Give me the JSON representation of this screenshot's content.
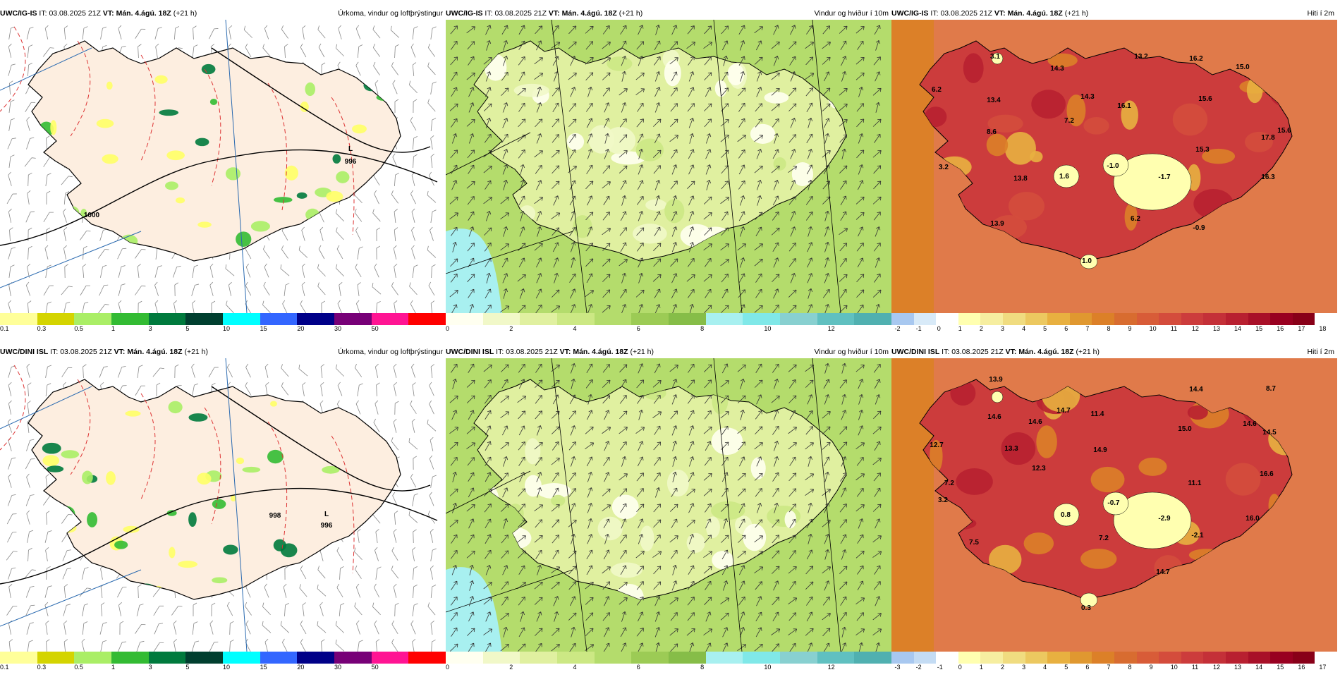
{
  "panels": [
    {
      "id": "p1",
      "type": "precip",
      "model": "UWC/IG-IS",
      "it_label": "IT:",
      "it": "03.08.2025 21Z",
      "vt_label": "VT:",
      "vt": "Mán. 4.ágú. 18Z",
      "lead": "(+21 h)",
      "title": "Úrkoma, vindur og loftþrýstingur",
      "labels": [
        {
          "text": "L"
        },
        {
          "text": "996"
        },
        {
          "text": "1000"
        }
      ],
      "colorbar": {
        "colors": [
          "#ffff99",
          "#d4d400",
          "#aaee66",
          "#33bb33",
          "#007a3d",
          "#003f2f",
          "#00ffff",
          "#3366ff",
          "#000088",
          "#770077",
          "#ff1493",
          "#ff0000"
        ],
        "ticks": [
          "0.1",
          "0.3",
          "0.5",
          "1",
          "3",
          "5",
          "10",
          "15",
          "20",
          "30",
          "50"
        ]
      }
    },
    {
      "id": "p2",
      "type": "wind",
      "model": "UWC/IG-IS",
      "it_label": "IT:",
      "it": "03.08.2025 21Z",
      "vt_label": "VT:",
      "vt": "Mán. 4.ágú. 18Z",
      "lead": "(+21 h)",
      "title": "Vindur og hviður í 10m",
      "labels": [],
      "colorbar": {
        "colors": [
          "#fffff0",
          "#f1f8c8",
          "#e0f0a0",
          "#cce884",
          "#b4dc6c",
          "#9ccb55",
          "#86bd48",
          "#a8f0f0",
          "#80e8e8",
          "#88d0d0",
          "#60c0c0",
          "#50b0b0"
        ],
        "ticks": [
          "0",
          "2",
          "4",
          "6",
          "8",
          "10",
          "12"
        ]
      }
    },
    {
      "id": "p3",
      "type": "temp",
      "model": "UWC/IG-IS",
      "it_label": "IT:",
      "it": "03.08.2025 21Z",
      "vt_label": "VT:",
      "vt": "Mán. 4.ágú. 18Z",
      "lead": "(+21 h)",
      "title": "Hiti í 2m",
      "labels": [
        {
          "text": "6.2"
        },
        {
          "text": "3.1"
        },
        {
          "text": "14.3"
        },
        {
          "text": "13.2"
        },
        {
          "text": "16.2"
        },
        {
          "text": "15.0"
        },
        {
          "text": "13.4"
        },
        {
          "text": "14.3"
        },
        {
          "text": "16.1"
        },
        {
          "text": "15.6"
        },
        {
          "text": "8.6"
        },
        {
          "text": "7.2"
        },
        {
          "text": "15.6"
        },
        {
          "text": "17.8"
        },
        {
          "text": "15.3"
        },
        {
          "text": "3.2"
        },
        {
          "text": "13.8"
        },
        {
          "text": "1.6"
        },
        {
          "text": "-1.0"
        },
        {
          "text": "-1.7"
        },
        {
          "text": "16.3"
        },
        {
          "text": "6.2"
        },
        {
          "text": "13.9"
        },
        {
          "text": "-0.9"
        },
        {
          "text": "1.0"
        }
      ],
      "colorbar": {
        "colors": [
          "#a8c8f0",
          "#d8eaf8",
          "#ffffff",
          "#ffffb0",
          "#f6eea0",
          "#f0dc80",
          "#ecc860",
          "#e8b040",
          "#e09830",
          "#dc8028",
          "#d86c30",
          "#d85c38",
          "#d44c3c",
          "#cc3c3c",
          "#c43038",
          "#b82030",
          "#a81028",
          "#980020",
          "#880018",
          "#ffffff"
        ],
        "ticks": [
          "-2",
          "-1",
          "0",
          "1",
          "2",
          "3",
          "4",
          "5",
          "6",
          "7",
          "8",
          "9",
          "10",
          "11",
          "12",
          "13",
          "14",
          "15",
          "16",
          "17",
          "18"
        ]
      }
    },
    {
      "id": "p4",
      "type": "precip",
      "model": "UWC/DINI ISL",
      "it_label": "IT:",
      "it": "03.08.2025 21Z",
      "vt_label": "VT:",
      "vt": "Mán. 4.ágú. 18Z",
      "lead": "(+21 h)",
      "title": "Úrkoma, vindur og loftþrýstingur",
      "labels": [
        {
          "text": "L"
        },
        {
          "text": "996"
        },
        {
          "text": "998"
        }
      ],
      "colorbar": {
        "colors": [
          "#ffff99",
          "#d4d400",
          "#aaee66",
          "#33bb33",
          "#007a3d",
          "#003f2f",
          "#00ffff",
          "#3366ff",
          "#000088",
          "#770077",
          "#ff1493",
          "#ff0000"
        ],
        "ticks": [
          "0.1",
          "0.3",
          "0.5",
          "1",
          "3",
          "5",
          "10",
          "15",
          "20",
          "30",
          "50"
        ]
      }
    },
    {
      "id": "p5",
      "type": "wind",
      "model": "UWC/DINI ISL",
      "it_label": "IT:",
      "it": "03.08.2025 21Z",
      "vt_label": "VT:",
      "vt": "Mán. 4.ágú. 18Z",
      "lead": "(+21 h)",
      "title": "Vindur og hviður í 10m",
      "labels": [],
      "colorbar": {
        "colors": [
          "#fffff0",
          "#f1f8c8",
          "#e0f0a0",
          "#cce884",
          "#b4dc6c",
          "#9ccb55",
          "#86bd48",
          "#a8f0f0",
          "#80e8e8",
          "#88d0d0",
          "#60c0c0",
          "#50b0b0"
        ],
        "ticks": [
          "0",
          "2",
          "4",
          "6",
          "8",
          "10",
          "12"
        ]
      }
    },
    {
      "id": "p6",
      "type": "temp",
      "model": "UWC/DINI ISL",
      "it_label": "IT:",
      "it": "03.08.2025 21Z",
      "vt_label": "VT:",
      "vt": "Mán. 4.ágú. 18Z",
      "lead": "(+21 h)",
      "title": "Hiti í 2m",
      "labels": [
        {
          "text": "13.9"
        },
        {
          "text": "14.4"
        },
        {
          "text": "8.7"
        },
        {
          "text": "14.6"
        },
        {
          "text": "14.7"
        },
        {
          "text": "11.4"
        },
        {
          "text": "14.6"
        },
        {
          "text": "15.0"
        },
        {
          "text": "14.6"
        },
        {
          "text": "14.5"
        },
        {
          "text": "12.7"
        },
        {
          "text": "13.3"
        },
        {
          "text": "14.9"
        },
        {
          "text": "12.3"
        },
        {
          "text": "16.6"
        },
        {
          "text": "7.2"
        },
        {
          "text": "11.1"
        },
        {
          "text": "3.2"
        },
        {
          "text": "0.8"
        },
        {
          "text": "-0.7"
        },
        {
          "text": "-2.9"
        },
        {
          "text": "16.0"
        },
        {
          "text": "-2.1"
        },
        {
          "text": "7.5"
        },
        {
          "text": "7.2"
        },
        {
          "text": "14.7"
        },
        {
          "text": "0.3"
        }
      ],
      "colorbar": {
        "colors": [
          "#a8c8f0",
          "#c4dcf4",
          "#ffffff",
          "#ffffb0",
          "#f6eea0",
          "#f0dc80",
          "#ecc860",
          "#e8b040",
          "#e09830",
          "#dc8028",
          "#d86c30",
          "#d85c38",
          "#d44c3c",
          "#cc3c3c",
          "#c43038",
          "#b82030",
          "#a81028",
          "#980020",
          "#880018",
          "#ffffff"
        ],
        "ticks": [
          "-3",
          "-2",
          "-1",
          "0",
          "1",
          "2",
          "3",
          "4",
          "5",
          "6",
          "7",
          "8",
          "9",
          "10",
          "11",
          "12",
          "13",
          "14",
          "15",
          "16",
          "17"
        ]
      }
    }
  ]
}
